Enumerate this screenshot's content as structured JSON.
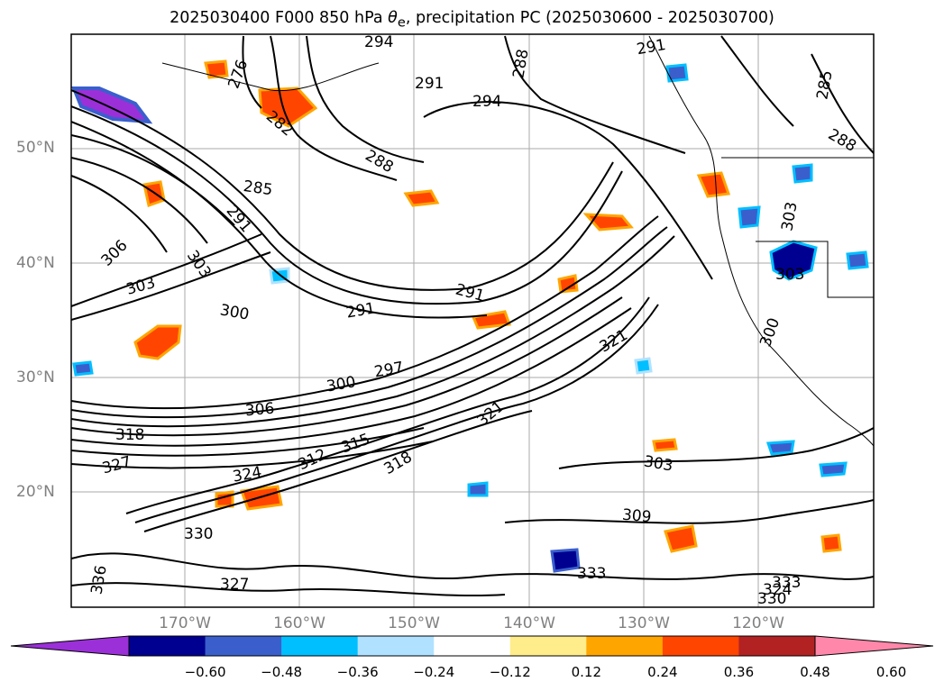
{
  "title": {
    "prefix": "2025030400 F000 850 hPa ",
    "symbol": "θ",
    "subscript": "e",
    "suffix": ", precipitation PC (2025030600 - 2025030700)"
  },
  "axes": {
    "lat_labels": [
      "50°N",
      "40°N",
      "30°N",
      "20°N"
    ],
    "lon_labels": [
      "170°W",
      "160°W",
      "150°W",
      "140°W",
      "130°W",
      "120°W"
    ]
  },
  "colorbar": {
    "tick_labels": [
      "−0.60",
      "−0.48",
      "−0.36",
      "−0.24",
      "−0.12",
      "0.12",
      "0.24",
      "0.36",
      "0.48",
      "0.60"
    ],
    "colors": [
      "#9b30d9",
      "#000090",
      "#3a5fcd",
      "#00bfff",
      "#b0e2ff",
      "#ffffff",
      "#ffec8b",
      "#ffa500",
      "#ff4500",
      "#b22222",
      "#ff88aa"
    ]
  },
  "contour_labels": [
    "276",
    "282",
    "285",
    "288",
    "291",
    "294",
    "297",
    "300",
    "303",
    "306",
    "309",
    "312",
    "315",
    "318",
    "321",
    "324",
    "327",
    "330",
    "333",
    "336"
  ],
  "colors": {
    "contour": "#000000",
    "grid": "#aaaaaa",
    "tick_text": "#808080"
  }
}
